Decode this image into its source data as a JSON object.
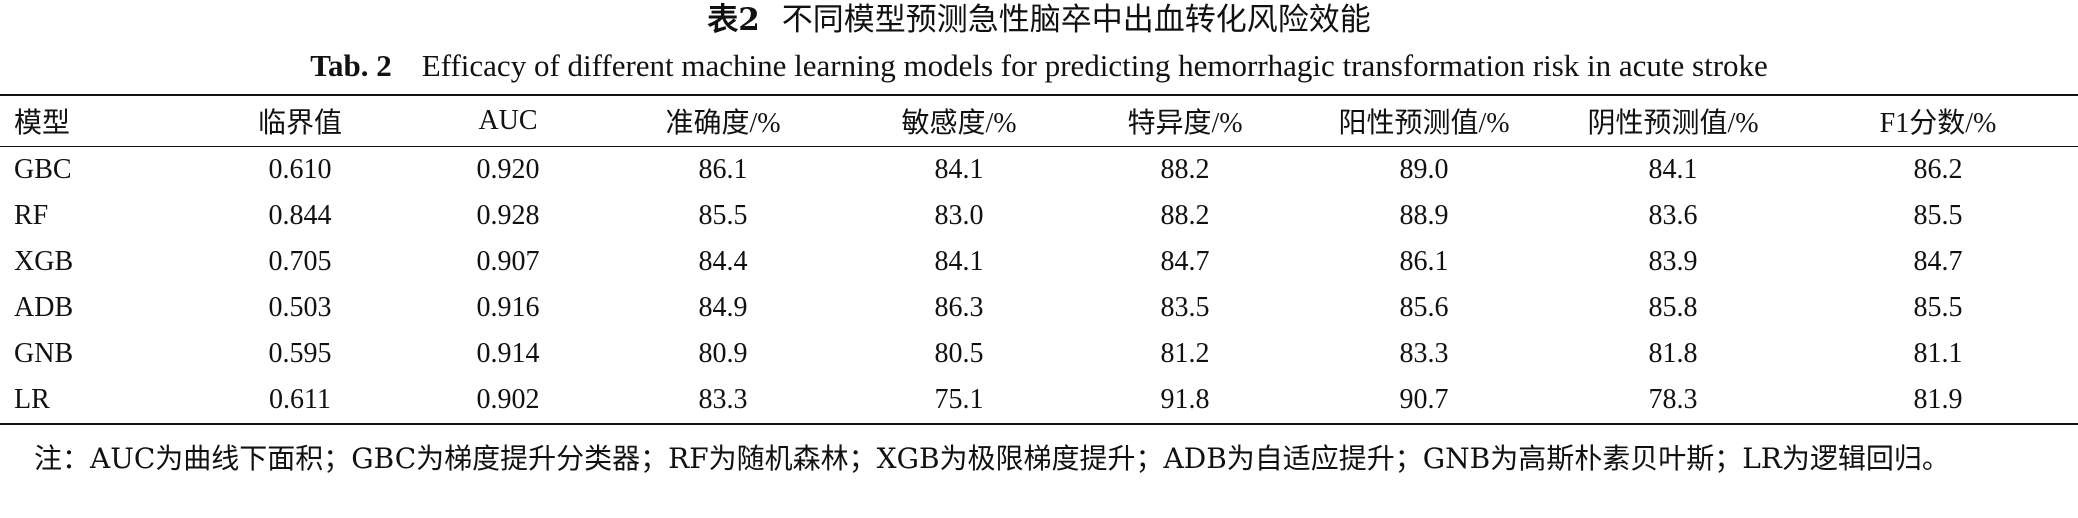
{
  "title_cn": {
    "label": "表2",
    "text": "不同模型预测急性脑卒中出血转化风险效能"
  },
  "title_en": {
    "label": "Tab. 2",
    "text": "Efficacy of different machine learning models for predicting hemorrhagic transformation risk in acute stroke"
  },
  "table": {
    "headers": [
      "模型",
      "临界值",
      "AUC",
      "准确度/%",
      "敏感度/%",
      "特异度/%",
      "阳性预测值/%",
      "阴性预测值/%",
      "F1分数/%"
    ],
    "rows": [
      [
        "GBC",
        "0.610",
        "0.920",
        "86.1",
        "84.1",
        "88.2",
        "89.0",
        "84.1",
        "86.2"
      ],
      [
        "RF",
        "0.844",
        "0.928",
        "85.5",
        "83.0",
        "88.2",
        "88.9",
        "83.6",
        "85.5"
      ],
      [
        "XGB",
        "0.705",
        "0.907",
        "84.4",
        "84.1",
        "84.7",
        "86.1",
        "83.9",
        "84.7"
      ],
      [
        "ADB",
        "0.503",
        "0.916",
        "84.9",
        "86.3",
        "83.5",
        "85.6",
        "85.8",
        "85.5"
      ],
      [
        "GNB",
        "0.595",
        "0.914",
        "80.9",
        "80.5",
        "81.2",
        "83.3",
        "81.8",
        "81.1"
      ],
      [
        "LR",
        "0.611",
        "0.902",
        "83.3",
        "75.1",
        "91.8",
        "90.7",
        "78.3",
        "81.9"
      ]
    ]
  },
  "note": "注：AUC为曲线下面积；GBC为梯度提升分类器；RF为随机森林；XGB为极限梯度提升；ADB为自适应提升；GNB为高斯朴素贝叶斯；LR为逻辑回归。"
}
